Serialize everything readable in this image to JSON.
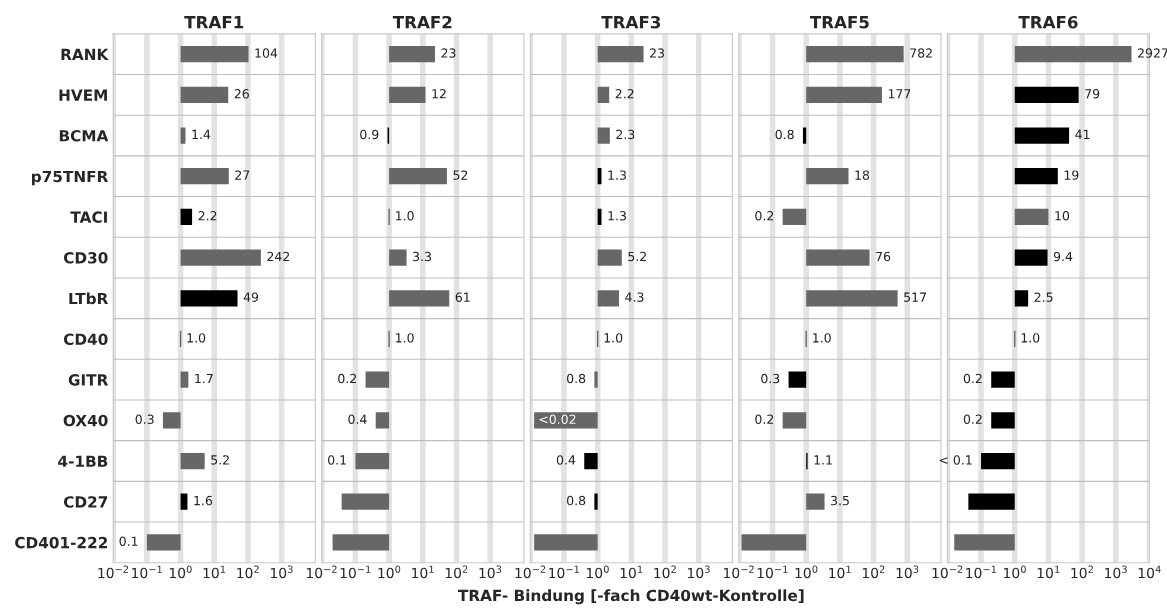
{
  "chart_data": [
    {
      "type": "bar",
      "orientation": "horizontal",
      "title": "TRAF1",
      "log": "x",
      "grid": true,
      "categories": [
        "RANK",
        "HVEM",
        "BCMA",
        "p75TNFR",
        "TACI",
        "CD30",
        "LTbR",
        "CD40",
        "GITR",
        "OX40",
        "4-1BB",
        "CD27",
        "CD401-222"
      ],
      "base": [
        1,
        1,
        1,
        1,
        1,
        1,
        1,
        1,
        1,
        1,
        1,
        1,
        1
      ],
      "values": [
        103,
        25,
        0.4,
        26,
        1.2,
        241,
        48,
        0,
        0.7,
        -0.7,
        4.2,
        0.6,
        -0.9
      ],
      "colors": [
        "#676767",
        "#676767",
        "#676767",
        "#676767",
        "#000000",
        "#676767",
        "#000000",
        "#676767",
        "#676767",
        "#676767",
        "#676767",
        "#000000",
        "#676767"
      ],
      "value_labels": [
        "104",
        "26",
        "1.4",
        "27",
        "2.2",
        "242",
        "49",
        "1.0",
        "1.7",
        "0.3",
        "5.2",
        "1.6",
        "0.1"
      ],
      "xlim": [
        0.01,
        10000
      ],
      "xticks": [
        {
          "value": 0.01,
          "label": "10$^{−2}$"
        },
        {
          "value": 0.1,
          "label": "10$^{−1}$"
        },
        {
          "value": 1,
          "label": "10$^{0}$"
        },
        {
          "value": 10,
          "label": "10$^{1}$"
        },
        {
          "value": 100,
          "label": "10$^{2}$"
        },
        {
          "value": 1000,
          "label": "10$^{3}$"
        }
      ]
    },
    {
      "type": "bar",
      "orientation": "horizontal",
      "title": "TRAF2",
      "log": "x",
      "grid": true,
      "tick_labels": "x",
      "categories": [
        null,
        null,
        null,
        null,
        null,
        null,
        null,
        null,
        null,
        null,
        null,
        null,
        null
      ],
      "base": [
        1,
        1,
        1,
        1,
        1,
        1,
        1,
        1,
        1,
        1,
        1,
        1,
        1
      ],
      "values": [
        22,
        11,
        -0.1,
        51,
        0,
        2.3,
        60,
        0,
        -0.8,
        -0.6,
        -0.9,
        -0.961,
        -0.979
      ],
      "colors": [
        "#676767",
        "#676767",
        "#000000",
        "#676767",
        "#676767",
        "#676767",
        "#676767",
        "#676767",
        "#676767",
        "#676767",
        "#676767",
        "#676767",
        "#676767"
      ],
      "value_labels": [
        "23",
        "12",
        "0.9",
        "52",
        "1.0",
        "3.3",
        "61",
        "1.0",
        "0.2",
        "0.4",
        "0.1",
        null,
        null
      ],
      "xlim": [
        0.01,
        10000
      ],
      "xticks": [
        {
          "value": 0.01,
          "label": "10$^{−2}$"
        },
        {
          "value": 0.1,
          "label": "10$^{−1}$"
        },
        {
          "value": 1,
          "label": "10$^{0}$"
        },
        {
          "value": 10,
          "label": "10$^{1}$"
        },
        {
          "value": 100,
          "label": "10$^{2}$"
        },
        {
          "value": 1000,
          "label": "10$^{3}$"
        }
      ]
    },
    {
      "type": "bar",
      "orientation": "horizontal",
      "title": "TRAF3",
      "log": "x",
      "grid": true,
      "tick_labels": "x",
      "xlabel": "TRAF- Bindung [-fach CD40wt-Kontrolle]",
      "categories": [
        null,
        null,
        null,
        null,
        null,
        null,
        null,
        null,
        null,
        null,
        null,
        null,
        null
      ],
      "base": [
        1,
        1,
        1,
        1,
        1,
        1,
        1,
        1,
        1,
        1,
        1,
        1,
        1
      ],
      "values": [
        22,
        1.2,
        1.3,
        0.3,
        0.3,
        4.2,
        3.3,
        0,
        -0.2,
        -0.987,
        -0.6,
        -0.2,
        -0.987
      ],
      "colors": [
        "#676767",
        "#676767",
        "#676767",
        "#000000",
        "#000000",
        "#676767",
        "#676767",
        "#676767",
        "#676767",
        "#676767",
        "#000000",
        "#000000",
        "#676767"
      ],
      "value_labels": [
        "23",
        "2.2",
        "2.3",
        "1.3",
        "1.3",
        "5.2",
        "4.3",
        "1.0",
        "0.8",
        "<0.02",
        "0.4",
        "0.8",
        null
      ],
      "xlim": [
        0.01,
        10000
      ],
      "xticks": [
        {
          "value": 0.01,
          "label": "10$^{−2}$"
        },
        {
          "value": 0.1,
          "label": "10$^{−1}$"
        },
        {
          "value": 1,
          "label": "10$^{0}$"
        },
        {
          "value": 10,
          "label": "10$^{1}$"
        },
        {
          "value": 100,
          "label": "10$^{2}$"
        },
        {
          "value": 1000,
          "label": "10$^{3}$"
        }
      ]
    },
    {
      "type": "bar",
      "orientation": "horizontal",
      "title": "TRAF5",
      "log": "x",
      "grid": true,
      "tick_labels": "x",
      "categories": [
        null,
        null,
        null,
        null,
        null,
        null,
        null,
        null,
        null,
        null,
        null,
        null,
        null
      ],
      "base": [
        1,
        1,
        1,
        1,
        1,
        1,
        1,
        1,
        1,
        1,
        1,
        1,
        1
      ],
      "values": [
        781,
        176,
        -0.2,
        17,
        -0.8,
        75,
        516,
        0,
        -0.7,
        -0.8,
        0.1,
        2.5,
        -0.988
      ],
      "colors": [
        "#676767",
        "#676767",
        "#000000",
        "#676767",
        "#676767",
        "#676767",
        "#676767",
        "#676767",
        "#000000",
        "#676767",
        "#000000",
        "#676767",
        "#676767"
      ],
      "value_labels": [
        "782",
        "177",
        "0.8",
        "18",
        "0.2",
        "76",
        "517",
        "1.0",
        "0.3",
        "0.2",
        "1.1",
        "3.5",
        null
      ],
      "xlim": [
        0.01,
        10000
      ],
      "xticks": [
        {
          "value": 0.01,
          "label": "10$^{−2}$"
        },
        {
          "value": 0.1,
          "label": "10$^{−1}$"
        },
        {
          "value": 1,
          "label": "10$^{0}$"
        },
        {
          "value": 10,
          "label": "10$^{1}$"
        },
        {
          "value": 100,
          "label": "10$^{2}$"
        },
        {
          "value": 1000,
          "label": "10$^{3}$"
        }
      ]
    },
    {
      "type": "bar",
      "orientation": "horizontal",
      "title": "TRAF6",
      "log": "x",
      "grid": true,
      "tick_labels": "x",
      "categories": [
        null,
        null,
        null,
        null,
        null,
        null,
        null,
        null,
        null,
        null,
        null,
        null,
        null
      ],
      "base": [
        1,
        1,
        1,
        1,
        1,
        1,
        1,
        1,
        1,
        1,
        1,
        1,
        1
      ],
      "values": [
        2926,
        78,
        40,
        18,
        9,
        8.4,
        1.5,
        0,
        -0.8,
        -0.8,
        -0.9,
        -0.958,
        -0.984
      ],
      "colors": [
        "#676767",
        "#000000",
        "#000000",
        "#000000",
        "#676767",
        "#000000",
        "#000000",
        "#676767",
        "#000000",
        "#000000",
        "#000000",
        "#000000",
        "#676767"
      ],
      "value_labels": [
        "2927",
        "79",
        "41",
        "19",
        "10",
        "9.4",
        "2.5",
        "1.0",
        "0.2",
        "0.2",
        "< 0.1",
        null,
        null
      ],
      "xlim": [
        0.01,
        10000
      ],
      "xticks": [
        {
          "value": 0.01,
          "label": "10$^{−2}$"
        },
        {
          "value": 0.1,
          "label": "10$^{−1}$"
        },
        {
          "value": 1,
          "label": "10$^{0}$"
        },
        {
          "value": 10,
          "label": "10$^{1}$"
        },
        {
          "value": 100,
          "label": "10$^{2}$"
        },
        {
          "value": 1000,
          "label": "10$^{3}$"
        },
        {
          "value": 10000,
          "label": "10$^{4}$"
        }
      ]
    }
  ]
}
